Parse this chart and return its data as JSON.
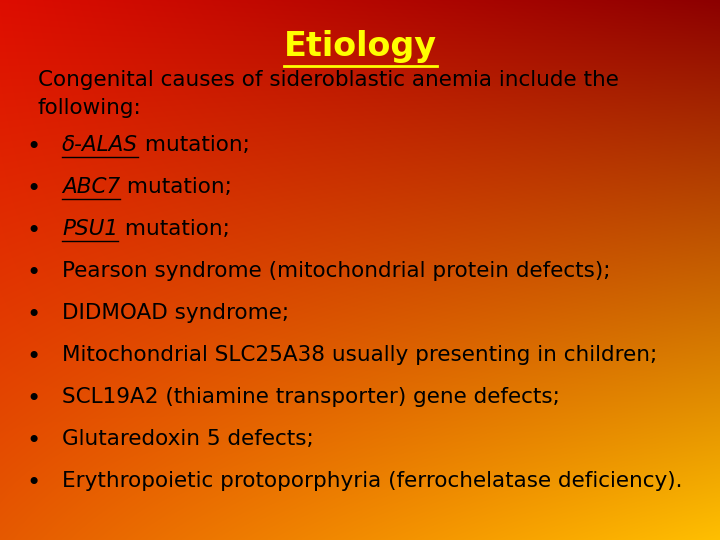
{
  "title": "Etiology",
  "title_color": "#FFFF00",
  "title_fontsize": 24,
  "body_color": "#000000",
  "body_fontsize": 15.5,
  "intro_text_line1": "Congenital causes of sideroblastic anemia include the",
  "intro_text_line2": "following:",
  "bullet_items": [
    [
      "δ-ALAS",
      " mutation;",
      true
    ],
    [
      "ABC7",
      " mutation;",
      true
    ],
    [
      "PSU1",
      " mutation;",
      true
    ],
    [
      "Pearson syndrome (mitochondrial protein defects);",
      "",
      false
    ],
    [
      "DIDMOAD syndrome;",
      "",
      false
    ],
    [
      "Mitochondrial SLC25A38 usually presenting in children;",
      "",
      false
    ],
    [
      "SCL19A2 (thiamine transporter) gene defects;",
      "",
      false
    ],
    [
      "Glutaredoxin 5 defects;",
      "",
      false
    ],
    [
      "Erythropoietic protoporphyria (ferrochelatase deficiency).",
      "",
      false
    ]
  ],
  "figsize": [
    7.2,
    5.4
  ],
  "dpi": 100
}
